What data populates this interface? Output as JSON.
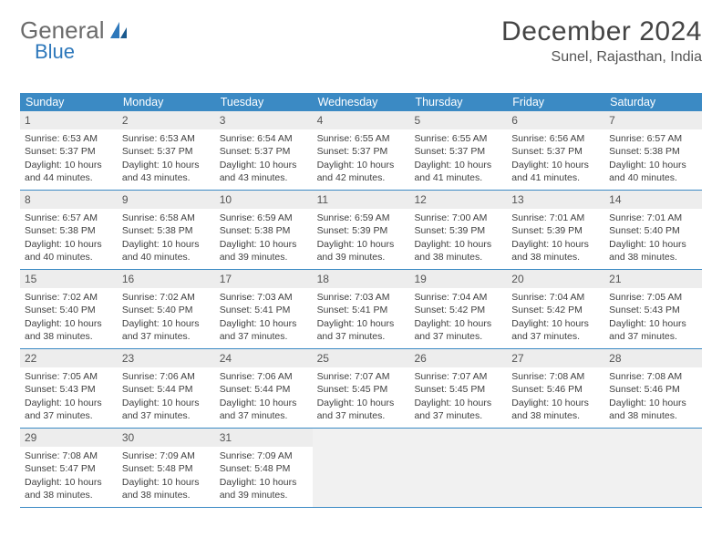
{
  "logo": {
    "word1": "General",
    "word2": "Blue"
  },
  "title": "December 2024",
  "location": "Sunel, Rajasthan, India",
  "colors": {
    "header_bg": "#3b8ac4",
    "header_text": "#ffffff",
    "daynum_bg": "#ededed",
    "border": "#3b8ac4",
    "empty_bg": "#f1f1f1",
    "logo_gray": "#6b6b6b",
    "logo_blue": "#2e78bb"
  },
  "weekdays": [
    "Sunday",
    "Monday",
    "Tuesday",
    "Wednesday",
    "Thursday",
    "Friday",
    "Saturday"
  ],
  "weeks": [
    [
      {
        "n": "1",
        "sr": "6:53 AM",
        "ss": "5:37 PM",
        "dl": "10 hours and 44 minutes."
      },
      {
        "n": "2",
        "sr": "6:53 AM",
        "ss": "5:37 PM",
        "dl": "10 hours and 43 minutes."
      },
      {
        "n": "3",
        "sr": "6:54 AM",
        "ss": "5:37 PM",
        "dl": "10 hours and 43 minutes."
      },
      {
        "n": "4",
        "sr": "6:55 AM",
        "ss": "5:37 PM",
        "dl": "10 hours and 42 minutes."
      },
      {
        "n": "5",
        "sr": "6:55 AM",
        "ss": "5:37 PM",
        "dl": "10 hours and 41 minutes."
      },
      {
        "n": "6",
        "sr": "6:56 AM",
        "ss": "5:37 PM",
        "dl": "10 hours and 41 minutes."
      },
      {
        "n": "7",
        "sr": "6:57 AM",
        "ss": "5:38 PM",
        "dl": "10 hours and 40 minutes."
      }
    ],
    [
      {
        "n": "8",
        "sr": "6:57 AM",
        "ss": "5:38 PM",
        "dl": "10 hours and 40 minutes."
      },
      {
        "n": "9",
        "sr": "6:58 AM",
        "ss": "5:38 PM",
        "dl": "10 hours and 40 minutes."
      },
      {
        "n": "10",
        "sr": "6:59 AM",
        "ss": "5:38 PM",
        "dl": "10 hours and 39 minutes."
      },
      {
        "n": "11",
        "sr": "6:59 AM",
        "ss": "5:39 PM",
        "dl": "10 hours and 39 minutes."
      },
      {
        "n": "12",
        "sr": "7:00 AM",
        "ss": "5:39 PM",
        "dl": "10 hours and 38 minutes."
      },
      {
        "n": "13",
        "sr": "7:01 AM",
        "ss": "5:39 PM",
        "dl": "10 hours and 38 minutes."
      },
      {
        "n": "14",
        "sr": "7:01 AM",
        "ss": "5:40 PM",
        "dl": "10 hours and 38 minutes."
      }
    ],
    [
      {
        "n": "15",
        "sr": "7:02 AM",
        "ss": "5:40 PM",
        "dl": "10 hours and 38 minutes."
      },
      {
        "n": "16",
        "sr": "7:02 AM",
        "ss": "5:40 PM",
        "dl": "10 hours and 37 minutes."
      },
      {
        "n": "17",
        "sr": "7:03 AM",
        "ss": "5:41 PM",
        "dl": "10 hours and 37 minutes."
      },
      {
        "n": "18",
        "sr": "7:03 AM",
        "ss": "5:41 PM",
        "dl": "10 hours and 37 minutes."
      },
      {
        "n": "19",
        "sr": "7:04 AM",
        "ss": "5:42 PM",
        "dl": "10 hours and 37 minutes."
      },
      {
        "n": "20",
        "sr": "7:04 AM",
        "ss": "5:42 PM",
        "dl": "10 hours and 37 minutes."
      },
      {
        "n": "21",
        "sr": "7:05 AM",
        "ss": "5:43 PM",
        "dl": "10 hours and 37 minutes."
      }
    ],
    [
      {
        "n": "22",
        "sr": "7:05 AM",
        "ss": "5:43 PM",
        "dl": "10 hours and 37 minutes."
      },
      {
        "n": "23",
        "sr": "7:06 AM",
        "ss": "5:44 PM",
        "dl": "10 hours and 37 minutes."
      },
      {
        "n": "24",
        "sr": "7:06 AM",
        "ss": "5:44 PM",
        "dl": "10 hours and 37 minutes."
      },
      {
        "n": "25",
        "sr": "7:07 AM",
        "ss": "5:45 PM",
        "dl": "10 hours and 37 minutes."
      },
      {
        "n": "26",
        "sr": "7:07 AM",
        "ss": "5:45 PM",
        "dl": "10 hours and 37 minutes."
      },
      {
        "n": "27",
        "sr": "7:08 AM",
        "ss": "5:46 PM",
        "dl": "10 hours and 38 minutes."
      },
      {
        "n": "28",
        "sr": "7:08 AM",
        "ss": "5:46 PM",
        "dl": "10 hours and 38 minutes."
      }
    ],
    [
      {
        "n": "29",
        "sr": "7:08 AM",
        "ss": "5:47 PM",
        "dl": "10 hours and 38 minutes."
      },
      {
        "n": "30",
        "sr": "7:09 AM",
        "ss": "5:48 PM",
        "dl": "10 hours and 38 minutes."
      },
      {
        "n": "31",
        "sr": "7:09 AM",
        "ss": "5:48 PM",
        "dl": "10 hours and 39 minutes."
      },
      null,
      null,
      null,
      null
    ]
  ],
  "labels": {
    "sunrise": "Sunrise:",
    "sunset": "Sunset:",
    "daylight": "Daylight:"
  }
}
